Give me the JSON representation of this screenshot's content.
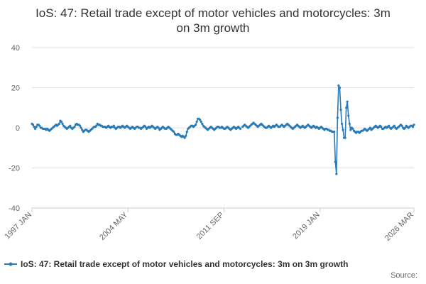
{
  "chart_data": {
    "type": "line",
    "title": "IoS: 47: Retail trade except of motor vehicles and motorcycles: 3m on 3m growth",
    "source": "Source:",
    "categories": [
      "1997 JAN",
      null,
      null,
      null,
      null,
      null,
      null,
      null,
      null,
      null,
      null,
      null,
      null,
      null,
      null,
      null,
      null,
      null,
      null,
      null,
      null,
      null,
      null,
      null,
      null,
      null,
      null,
      null,
      null,
      null,
      null,
      null,
      null,
      null,
      null,
      null,
      null,
      null,
      null,
      null,
      null,
      null,
      null,
      null,
      null,
      null,
      null,
      null,
      null,
      null,
      null,
      null,
      null,
      null,
      null,
      null,
      null,
      null,
      null,
      null,
      null,
      null,
      null,
      null,
      null,
      null,
      null,
      null,
      null,
      null,
      null,
      null,
      null,
      null,
      null,
      null,
      null,
      null,
      null,
      null,
      null,
      null,
      null,
      null,
      null,
      null,
      null,
      null,
      "2004 MAY",
      null,
      null,
      null,
      null,
      null,
      null,
      null,
      null,
      null,
      null,
      null,
      null,
      null,
      null,
      null,
      null,
      null,
      null,
      null,
      null,
      null,
      null,
      null,
      null,
      null,
      null,
      null,
      null,
      null,
      null,
      null,
      null,
      null,
      null,
      null,
      null,
      null,
      null,
      null,
      null,
      null,
      null,
      null,
      null,
      null,
      null,
      null,
      null,
      null,
      null,
      null,
      null,
      null,
      null,
      null,
      null,
      null,
      null,
      null,
      null,
      null,
      null,
      null,
      null,
      null,
      null,
      null,
      null,
      null,
      null,
      null,
      null,
      null,
      null,
      null,
      null,
      null,
      null,
      null,
      null,
      null,
      null,
      null,
      null,
      null,
      null,
      null,
      "2011 SEP",
      null,
      null,
      null,
      null,
      null,
      null,
      null,
      null,
      null,
      null,
      null,
      null,
      null,
      null,
      null,
      null,
      null,
      null,
      null,
      null,
      null,
      null,
      null,
      null,
      null,
      null,
      null,
      null,
      null,
      null,
      null,
      null,
      null,
      null,
      null,
      null,
      null,
      null,
      null,
      null,
      null,
      null,
      null,
      null,
      null,
      null,
      null,
      null,
      null,
      null,
      null,
      null,
      null,
      null,
      null,
      null,
      null,
      null,
      null,
      null,
      null,
      null,
      null,
      null,
      null,
      null,
      null,
      null,
      null,
      null,
      null,
      null,
      null,
      null,
      null,
      null,
      null,
      null,
      null,
      null,
      null,
      null,
      null,
      null,
      null,
      null,
      null,
      "2019 JAN",
      null,
      null,
      null,
      null,
      null,
      null,
      null,
      null,
      null,
      null,
      null,
      null,
      null,
      null,
      null,
      null,
      null,
      null,
      null,
      null,
      null,
      null,
      null,
      null,
      null,
      null,
      null,
      null,
      null,
      null,
      null,
      null,
      null,
      null,
      null,
      null,
      null,
      null,
      null,
      null,
      null,
      null,
      null,
      null,
      null,
      null,
      null,
      null,
      null,
      null,
      null,
      null,
      null,
      null,
      null,
      null,
      null,
      null,
      null,
      null,
      null,
      null,
      null,
      null,
      null,
      null,
      null,
      null,
      null,
      null,
      null,
      null,
      null,
      null,
      null,
      null,
      null,
      null,
      null,
      null,
      null,
      null,
      null,
      null,
      null,
      "2026 MAR"
    ],
    "series": [
      {
        "name": "IoS: 47: Retail trade except of motor vehicles and motorcycles: 3m on 3m growth",
        "color": "#2a7ab8",
        "values": [
          2,
          1.5,
          0.5,
          -0.5,
          0.5,
          1.5,
          1.5,
          1,
          0,
          0,
          -0.5,
          -0.5,
          -0.5,
          -1,
          -0.5,
          -1,
          -1.5,
          -1,
          -0.5,
          0,
          0.5,
          1,
          1.5,
          1,
          1.5,
          2,
          3.5,
          3,
          2,
          1,
          0.5,
          0,
          -0.5,
          0,
          0.5,
          1,
          0,
          -0.5,
          0,
          0.5,
          1.5,
          2,
          1.5,
          1.5,
          1,
          0,
          -1,
          -2,
          -1.5,
          -1,
          -1,
          -1.5,
          -2,
          -1.5,
          -1,
          -0.5,
          0,
          0.5,
          0.5,
          1,
          2,
          1.5,
          1.5,
          1,
          1,
          0.5,
          0.5,
          0.5,
          0,
          0.5,
          1,
          0.5,
          0,
          0.5,
          0.5,
          1,
          0,
          -0.5,
          0,
          0.5,
          0.5,
          0,
          0.5,
          1,
          0.5,
          0,
          0.5,
          1,
          0.5,
          0,
          -0.5,
          0,
          0.5,
          0,
          -0.5,
          0,
          0.5,
          0.5,
          0,
          0,
          -0.5,
          0,
          0.5,
          1,
          0.5,
          -0.5,
          0,
          0.5,
          0,
          0.5,
          1,
          0.5,
          0,
          -0.5,
          0,
          0.5,
          0,
          -1,
          -0.5,
          0,
          0.5,
          0,
          -0.5,
          -0.5,
          0,
          0.5,
          0,
          -0.5,
          -1,
          -1.5,
          -2,
          -3,
          -3.5,
          -3.5,
          -3,
          -3.5,
          -4,
          -4.5,
          -4,
          -4.5,
          -5,
          -4,
          -2,
          -0.5,
          0,
          0.5,
          1,
          1,
          0.5,
          1,
          1.5,
          3,
          4.5,
          4.5,
          4,
          3,
          2,
          1,
          0.5,
          0,
          -0.5,
          -1,
          -0.5,
          0,
          0.5,
          0,
          -0.5,
          -1,
          -0.5,
          0,
          0.5,
          0.5,
          0,
          0,
          0.5,
          0,
          -0.5,
          -0.5,
          0,
          0.5,
          0,
          -0.5,
          -1,
          -0.5,
          0,
          0.5,
          0,
          -0.5,
          0,
          0.5,
          0,
          -0.5,
          null,
          0.5,
          1,
          1.5,
          1,
          0.5,
          0,
          0.5,
          1,
          1.5,
          2,
          2.5,
          2,
          1.5,
          1,
          0.5,
          1,
          1.5,
          2,
          1.5,
          1,
          0.5,
          0,
          0,
          0.5,
          1,
          0.5,
          0,
          0.5,
          1,
          0.5,
          1,
          1.5,
          1,
          0.5,
          0.5,
          1,
          1.5,
          1,
          0.5,
          1,
          1.5,
          2,
          1.5,
          1,
          0.5,
          0,
          -0.5,
          0,
          0.5,
          1,
          1.5,
          1,
          0.5,
          0,
          0.5,
          1,
          0.5,
          0,
          0.5,
          1,
          1.5,
          1,
          0.5,
          0,
          0.5,
          1,
          0.5,
          0,
          0.5,
          0,
          -0.5,
          0,
          0.5,
          0,
          -0.5,
          -1,
          -0.5,
          -0.5,
          -1,
          -1,
          -1.5,
          -1.5,
          -2,
          -2,
          -2,
          -17,
          -23,
          5,
          21,
          20,
          9,
          2,
          -1,
          -5,
          -5,
          10,
          13,
          6,
          2,
          -1,
          0,
          -0.5,
          -1.5,
          -2,
          -2.5,
          -2,
          -2,
          -2.5,
          -2,
          -1.5,
          -1.5,
          -1,
          -0.5,
          -1,
          -1.5,
          -1,
          -0.5,
          0,
          -1,
          -0.5,
          0,
          0.5,
          1,
          0.5,
          0,
          0.5,
          1,
          0.5,
          -0.5,
          -0.5,
          0,
          0.5,
          0,
          0.5,
          1,
          0,
          -0.5,
          0,
          0.5,
          1,
          0,
          -0.5,
          0,
          0.5,
          1,
          1.5,
          1,
          0,
          -0.5,
          0,
          1,
          0.5,
          0,
          0.5,
          1,
          1,
          0.5,
          1.5
        ]
      }
    ],
    "ylim": [
      -40,
      40
    ],
    "yticks": [
      -40,
      -20,
      0,
      20,
      40
    ],
    "grid": true
  }
}
